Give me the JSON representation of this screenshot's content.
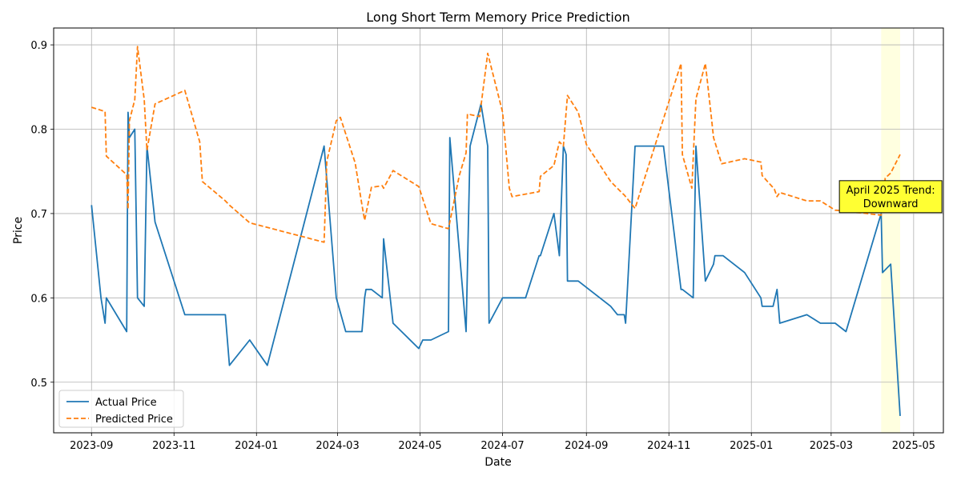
{
  "chart_data": {
    "type": "line",
    "title": "Long Short Term Memory Price Prediction",
    "xlabel": "Date",
    "ylabel": "Price",
    "x_type": "date",
    "xlim": [
      "2023-08-04",
      "2025-05-23"
    ],
    "ylim": [
      0.44,
      0.92
    ],
    "x_ticks": [
      "2023-09-01",
      "2023-11-01",
      "2024-01-01",
      "2024-03-01",
      "2024-05-01",
      "2024-07-01",
      "2024-09-01",
      "2024-11-01",
      "2025-01-01",
      "2025-03-01",
      "2025-05-01"
    ],
    "x_tick_labels": [
      "2023-09",
      "2023-11",
      "2024-01",
      "2024-03",
      "2024-05",
      "2024-07",
      "2024-09",
      "2024-11",
      "2025-01",
      "2025-03",
      "2025-05"
    ],
    "y_ticks": [
      0.5,
      0.6,
      0.7,
      0.8,
      0.9
    ],
    "y_tick_labels": [
      "0.5",
      "0.6",
      "0.7",
      "0.8",
      "0.9"
    ],
    "grid": true,
    "legend_position": "lower-left",
    "series": [
      {
        "name": "Actual Price",
        "color": "#1f77b4",
        "style": "solid",
        "x": [
          "2023-09-01",
          "2023-09-08",
          "2023-09-11",
          "2023-09-12",
          "2023-09-27",
          "2023-09-28",
          "2023-09-29",
          "2023-10-03",
          "2023-10-05",
          "2023-10-10",
          "2023-10-12",
          "2023-10-18",
          "2023-11-09",
          "2023-12-09",
          "2023-12-12",
          "2023-12-27",
          "2024-01-09",
          "2024-02-20",
          "2024-02-29",
          "2024-03-07",
          "2024-03-19",
          "2024-03-21",
          "2024-03-22",
          "2024-03-26",
          "2024-04-03",
          "2024-04-04",
          "2024-04-11",
          "2024-04-30",
          "2024-05-03",
          "2024-05-09",
          "2024-05-22",
          "2024-05-23",
          "2024-06-04",
          "2024-06-07",
          "2024-06-15",
          "2024-06-20",
          "2024-06-21",
          "2024-07-01",
          "2024-07-18",
          "2024-07-28",
          "2024-07-29",
          "2024-08-08",
          "2024-08-12",
          "2024-08-15",
          "2024-08-17",
          "2024-08-18",
          "2024-08-26",
          "2024-09-19",
          "2024-09-24",
          "2024-09-29",
          "2024-09-30",
          "2024-10-07",
          "2024-10-08",
          "2024-10-09",
          "2024-10-28",
          "2024-11-10",
          "2024-11-11",
          "2024-11-19",
          "2024-11-21",
          "2024-11-28",
          "2024-12-04",
          "2024-12-05",
          "2024-12-11",
          "2024-12-27",
          "2025-01-08",
          "2025-01-09",
          "2025-01-13",
          "2025-01-17",
          "2025-01-20",
          "2025-01-22",
          "2025-02-11",
          "2025-02-21",
          "2025-03-04",
          "2025-03-12",
          "2025-04-07",
          "2025-04-08",
          "2025-04-14",
          "2025-04-21"
        ],
        "y": [
          0.71,
          0.6,
          0.57,
          0.6,
          0.56,
          0.82,
          0.79,
          0.8,
          0.6,
          0.59,
          0.78,
          0.69,
          0.58,
          0.58,
          0.52,
          0.55,
          0.52,
          0.78,
          0.6,
          0.56,
          0.56,
          0.6,
          0.61,
          0.61,
          0.6,
          0.67,
          0.57,
          0.54,
          0.55,
          0.55,
          0.56,
          0.79,
          0.56,
          0.78,
          0.83,
          0.78,
          0.57,
          0.6,
          0.6,
          0.65,
          0.65,
          0.7,
          0.65,
          0.78,
          0.77,
          0.62,
          0.62,
          0.59,
          0.58,
          0.58,
          0.57,
          0.78,
          0.78,
          0.78,
          0.78,
          0.61,
          0.61,
          0.6,
          0.78,
          0.62,
          0.64,
          0.65,
          0.65,
          0.63,
          0.6,
          0.59,
          0.59,
          0.59,
          0.61,
          0.57,
          0.58,
          0.57,
          0.57,
          0.56,
          0.7,
          0.63,
          0.64,
          0.46
        ]
      },
      {
        "name": "Predicted Price",
        "color": "#ff7f0e",
        "style": "dashed",
        "x": [
          "2023-09-01",
          "2023-09-11",
          "2023-09-12",
          "2023-09-27",
          "2023-09-28",
          "2023-09-29",
          "2023-10-03",
          "2023-10-05",
          "2023-10-10",
          "2023-10-12",
          "2023-10-18",
          "2023-11-09",
          "2023-11-20",
          "2023-11-22",
          "2023-12-09",
          "2023-12-12",
          "2023-12-27",
          "2024-02-20",
          "2024-02-22",
          "2024-02-29",
          "2024-03-03",
          "2024-03-14",
          "2024-03-19",
          "2024-03-21",
          "2024-03-26",
          "2024-04-03",
          "2024-04-04",
          "2024-04-11",
          "2024-04-30",
          "2024-05-09",
          "2024-05-22",
          "2024-05-30",
          "2024-06-04",
          "2024-06-05",
          "2024-06-14",
          "2024-06-20",
          "2024-07-01",
          "2024-07-06",
          "2024-07-08",
          "2024-07-28",
          "2024-07-29",
          "2024-08-08",
          "2024-08-12",
          "2024-08-15",
          "2024-08-18",
          "2024-08-26",
          "2024-09-01",
          "2024-09-19",
          "2024-09-27",
          "2024-09-29",
          "2024-10-05",
          "2024-10-07",
          "2024-11-10",
          "2024-11-11",
          "2024-11-18",
          "2024-11-21",
          "2024-11-28",
          "2024-12-02",
          "2024-12-04",
          "2024-12-10",
          "2024-12-27",
          "2025-01-08",
          "2025-01-09",
          "2025-01-18",
          "2025-01-20",
          "2025-01-22",
          "2025-02-11",
          "2025-02-21",
          "2025-03-04",
          "2025-03-12",
          "2025-04-07",
          "2025-04-10",
          "2025-04-14",
          "2025-04-21"
        ],
        "y": [
          0.826,
          0.821,
          0.768,
          0.746,
          0.705,
          0.81,
          0.835,
          0.898,
          0.835,
          0.775,
          0.83,
          0.846,
          0.785,
          0.738,
          0.715,
          0.71,
          0.689,
          0.666,
          0.762,
          0.81,
          0.814,
          0.76,
          0.71,
          0.692,
          0.731,
          0.733,
          0.73,
          0.751,
          0.732,
          0.688,
          0.682,
          0.745,
          0.772,
          0.818,
          0.815,
          0.89,
          0.82,
          0.73,
          0.72,
          0.726,
          0.744,
          0.757,
          0.785,
          0.78,
          0.84,
          0.82,
          0.782,
          0.738,
          0.725,
          0.722,
          0.71,
          0.706,
          0.878,
          0.77,
          0.73,
          0.836,
          0.878,
          0.82,
          0.79,
          0.759,
          0.765,
          0.761,
          0.745,
          0.729,
          0.72,
          0.725,
          0.715,
          0.715,
          0.704,
          0.703,
          0.698,
          0.742,
          0.748,
          0.77
        ]
      }
    ],
    "highlight_span": [
      "2025-04-07",
      "2025-04-21"
    ],
    "highlight_color": "#ffffe0",
    "annotation": {
      "text_line1": "April 2025 Trend:",
      "text_line2": "Downward",
      "anchor_date": "2025-04-14",
      "anchor_value": 0.72,
      "box_color": "#ffff33"
    }
  }
}
